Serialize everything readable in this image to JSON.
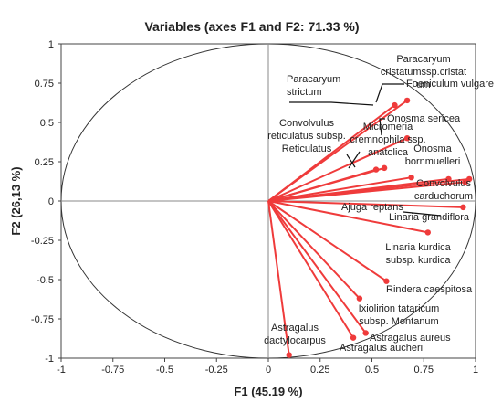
{
  "chart_data": {
    "type": "scatter",
    "title": "Variables (axes F1 and F2: 71.33 %)",
    "xlabel": "F1 (45.19 %)",
    "ylabel": "F2 (26,13 %)",
    "xlim": [
      -1,
      1
    ],
    "ylim": [
      -1,
      1
    ],
    "xticks": [
      "-1",
      "-0.75",
      "-0.5",
      "-0.25",
      "0",
      "0.25",
      "0.5",
      "0.75",
      "1"
    ],
    "yticks": [
      "-1",
      "-0.75",
      "-0.5",
      "-0.25",
      "0",
      "0.25",
      "0.5",
      "0.75",
      "1"
    ],
    "correlation_circle": true,
    "vector_color": "#ef3b3b",
    "grid": false,
    "points": [
      {
        "name": "Paracaryum strictum",
        "x": 0.61,
        "y": 0.61
      },
      {
        "name": "Paracaryum cristatumssp.cristat um",
        "x": 0.67,
        "y": 0.64
      },
      {
        "name": "Foeniculum vulgare",
        "x": 0.67,
        "y": 0.4
      },
      {
        "name": "Onosma sericea",
        "x": 0.69,
        "y": 0.15
      },
      {
        "name": "Micromeria cremnophila ssp. anatolica",
        "x": 0.56,
        "y": 0.21
      },
      {
        "name": "Convolvulus reticulatus subsp. Reticulatus",
        "x": 0.52,
        "y": 0.2
      },
      {
        "name": "Onosma bornmuelleri",
        "x": 0.87,
        "y": 0.14
      },
      {
        "name": "Convolvulus carduchorum",
        "x": 0.97,
        "y": 0.14
      },
      {
        "name": "Ajuga reptans",
        "x": 0.95,
        "y": 0.12
      },
      {
        "name": "Linaria grandiflora",
        "x": 0.94,
        "y": -0.04
      },
      {
        "name": "Linaria kurdica subsp. kurdica",
        "x": 0.77,
        "y": -0.2
      },
      {
        "name": "Rindera caespitosa",
        "x": 0.57,
        "y": -0.51
      },
      {
        "name": "Ixiolirion tataricum subsp. Montanum",
        "x": 0.44,
        "y": -0.62
      },
      {
        "name": "Astragalus aureus",
        "x": 0.47,
        "y": -0.84
      },
      {
        "name": "Astragalus aucheri",
        "x": 0.41,
        "y": -0.87
      },
      {
        "name": "Astragalus dactylocarpus",
        "x": 0.1,
        "y": -0.98
      }
    ],
    "labels": [
      {
        "lines": [
          "Paracaryum",
          "strictum"
        ]
      },
      {
        "lines": [
          "Paracaryum",
          "cristatumssp.cristat",
          "um"
        ]
      },
      {
        "lines": [
          "Foeniculum vulgare"
        ]
      },
      {
        "lines": [
          "Onosma sericea"
        ]
      },
      {
        "lines": [
          "Micromeria",
          "cremnophila ssp.",
          "anatolica"
        ]
      },
      {
        "lines": [
          "Convolvulus",
          "reticulatus subsp.",
          "Reticulatus"
        ]
      },
      {
        "lines": [
          "Onosma",
          "bornmuelleri"
        ]
      },
      {
        "lines": [
          "Convolvulus",
          "carduchorum"
        ]
      },
      {
        "lines": [
          "Ajuga reptans"
        ]
      },
      {
        "lines": [
          "Linaria grandiflora"
        ]
      },
      {
        "lines": [
          "Linaria kurdica",
          "subsp. kurdica"
        ]
      },
      {
        "lines": [
          "Rindera caespitosa"
        ]
      },
      {
        "lines": [
          "Ixiolirion tataricum",
          "subsp. Montanum"
        ]
      },
      {
        "lines": [
          "Astragalus  aureus"
        ]
      },
      {
        "lines": [
          "Astragalus aucheri"
        ]
      },
      {
        "lines": [
          "Astragalus",
          "dactylocarpus"
        ]
      }
    ]
  }
}
